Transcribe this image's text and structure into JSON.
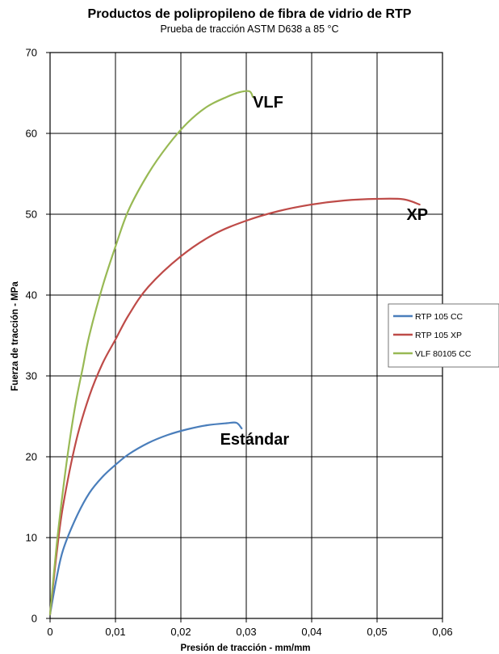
{
  "chart_data": {
    "type": "line",
    "title": "Productos de polipropileno de fibra de vidrio de RTP",
    "subtitle": "Prueba de tracción ASTM D638 a 85 °C",
    "xlabel": "Presión de tracción - mm/mm",
    "ylabel": "Fuerza de tracción - MPa",
    "xlim": [
      0,
      0.06
    ],
    "ylim": [
      0,
      70
    ],
    "x_ticks": [
      0,
      0.01,
      0.02,
      0.03,
      0.04,
      0.05,
      0.06
    ],
    "x_tick_labels": [
      "0",
      "0,01",
      "0,02",
      "0,03",
      "0,04",
      "0,05",
      "0,06"
    ],
    "y_ticks": [
      0,
      10,
      20,
      30,
      40,
      50,
      60,
      70
    ],
    "y_tick_labels": [
      "0",
      "10",
      "20",
      "30",
      "40",
      "50",
      "60",
      "70"
    ],
    "grid": true,
    "legend_position": "right-middle",
    "series": [
      {
        "name": "RTP 105 CC",
        "color": "#4a7ebb",
        "points": [
          [
            0,
            0.5
          ],
          [
            0.001,
            5
          ],
          [
            0.002,
            8.5
          ],
          [
            0.004,
            12.5
          ],
          [
            0.006,
            15.5
          ],
          [
            0.008,
            17.5
          ],
          [
            0.01,
            19
          ],
          [
            0.012,
            20.3
          ],
          [
            0.015,
            21.7
          ],
          [
            0.018,
            22.7
          ],
          [
            0.021,
            23.4
          ],
          [
            0.024,
            23.9
          ],
          [
            0.027,
            24.15
          ],
          [
            0.0285,
            24.2
          ],
          [
            0.0293,
            23.5
          ]
        ]
      },
      {
        "name": "RTP 105 XP",
        "color": "#be4b48",
        "points": [
          [
            0,
            0.5
          ],
          [
            0.001,
            8
          ],
          [
            0.002,
            14
          ],
          [
            0.004,
            22
          ],
          [
            0.006,
            27.5
          ],
          [
            0.008,
            31.5
          ],
          [
            0.01,
            34.5
          ],
          [
            0.012,
            37.5
          ],
          [
            0.015,
            41
          ],
          [
            0.02,
            44.8
          ],
          [
            0.025,
            47.5
          ],
          [
            0.03,
            49.2
          ],
          [
            0.035,
            50.4
          ],
          [
            0.04,
            51.2
          ],
          [
            0.045,
            51.7
          ],
          [
            0.05,
            51.9
          ],
          [
            0.054,
            51.85
          ],
          [
            0.0565,
            51.2
          ]
        ]
      },
      {
        "name": "VLF 80105 CC",
        "color": "#98b954",
        "points": [
          [
            0,
            0.5
          ],
          [
            0.001,
            9
          ],
          [
            0.002,
            16
          ],
          [
            0.003,
            22
          ],
          [
            0.004,
            27
          ],
          [
            0.005,
            31
          ],
          [
            0.006,
            35
          ],
          [
            0.008,
            41
          ],
          [
            0.01,
            46
          ],
          [
            0.012,
            50.5
          ],
          [
            0.015,
            55
          ],
          [
            0.018,
            58.5
          ],
          [
            0.021,
            61.3
          ],
          [
            0.024,
            63.3
          ],
          [
            0.027,
            64.5
          ],
          [
            0.029,
            65.1
          ],
          [
            0.0305,
            65.2
          ],
          [
            0.031,
            64.5
          ]
        ]
      }
    ],
    "annotations": [
      {
        "text": "VLF",
        "x": 0.031,
        "y": 63.2
      },
      {
        "text": "XP",
        "x": 0.0545,
        "y": 49.3
      },
      {
        "text": "Estándar",
        "x": 0.026,
        "y": 21.5
      }
    ]
  }
}
